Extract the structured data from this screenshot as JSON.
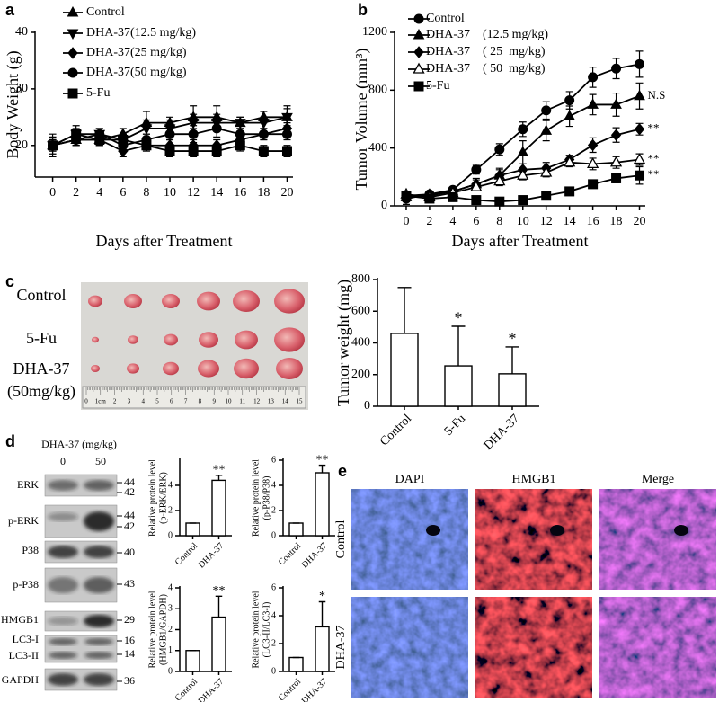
{
  "panel_labels": [
    "a",
    "b",
    "c",
    "d",
    "e"
  ],
  "chart_data": [
    {
      "type": "line",
      "ylabel": "Body Weight (g)",
      "xlabel": "Days after Treatment",
      "x": [
        0,
        2,
        4,
        6,
        8,
        10,
        12,
        14,
        16,
        18,
        20
      ],
      "xlim": [
        -1.5,
        20.5
      ],
      "xticks": [
        0,
        2,
        4,
        6,
        8,
        10,
        12,
        14,
        16,
        18,
        20
      ],
      "ylim": [
        14.4,
        40
      ],
      "yticks": [
        20,
        30,
        40
      ],
      "series": [
        {
          "name": "Control",
          "color": "#000000",
          "marker": "triangle",
          "values": [
            20,
            21,
            21,
            22,
            24,
            24,
            25,
            25,
            24,
            25,
            25
          ],
          "errors": [
            2,
            1,
            1,
            1,
            2,
            1,
            2,
            2,
            1,
            1,
            2
          ]
        },
        {
          "name": "DHA-37(12.5 mg/kg)",
          "color": "#000000",
          "marker": "triangle-down",
          "values": [
            20,
            22,
            22,
            21,
            23,
            23,
            24,
            24,
            24,
            24,
            25
          ],
          "errors": [
            1.5,
            1.5,
            1,
            1,
            1.5,
            1.5,
            1.5,
            1.5,
            1,
            1,
            1.5
          ]
        },
        {
          "name": "DHA-37(25 mg/kg)",
          "color": "#000000",
          "marker": "diamond",
          "values": [
            20,
            21,
            21,
            19,
            20,
            20,
            20,
            20,
            21,
            22,
            23
          ],
          "errors": [
            1,
            1,
            1,
            1,
            1,
            1,
            1,
            1,
            1,
            1,
            1
          ]
        },
        {
          "name": "DHA-37(50 mg/kg)",
          "color": "#000000",
          "marker": "circle",
          "values": [
            20,
            21,
            22,
            20,
            21,
            22,
            22,
            23,
            22,
            22,
            22
          ],
          "errors": [
            1,
            1,
            1,
            1,
            1,
            1,
            1.5,
            1.5,
            1,
            1,
            1
          ]
        },
        {
          "name": "5-Fu",
          "color": "#000000",
          "marker": "square",
          "values": [
            20,
            22,
            21,
            21,
            20,
            19,
            19,
            19,
            20,
            19,
            19
          ],
          "errors": [
            1,
            1,
            1,
            1,
            1,
            1,
            1,
            1,
            1,
            1,
            1
          ]
        }
      ]
    },
    {
      "type": "line",
      "ylabel": "Tumor Volume (mm³)",
      "xlabel": "Days after Treatment",
      "x": [
        0,
        2,
        4,
        6,
        8,
        10,
        12,
        14,
        16,
        18,
        20
      ],
      "xlim": [
        -1,
        20.5
      ],
      "xticks": [
        0,
        2,
        4,
        6,
        8,
        10,
        12,
        14,
        16,
        18,
        20
      ],
      "ylim": [
        0,
        1200
      ],
      "yticks": [
        0,
        400,
        800,
        1200
      ],
      "series": [
        {
          "name": "Control",
          "color": "#000000",
          "marker": "circle",
          "values": [
            50,
            80,
            110,
            250,
            390,
            530,
            660,
            730,
            890,
            950,
            980
          ],
          "errors": [
            40,
            20,
            20,
            30,
            40,
            50,
            60,
            60,
            70,
            70,
            90
          ]
        },
        {
          "name": "DHA-37    (12.5 mg/kg)",
          "color": "#000000",
          "marker": "triangle",
          "values": [
            60,
            70,
            100,
            150,
            210,
            370,
            520,
            620,
            700,
            700,
            760
          ],
          "errors": [
            30,
            20,
            20,
            40,
            50,
            80,
            70,
            70,
            70,
            80,
            90
          ]
        },
        {
          "name": "DHA-37    ( 25  mg/kg)",
          "color": "#000000",
          "marker": "diamond",
          "values": [
            70,
            80,
            100,
            150,
            210,
            250,
            260,
            320,
            420,
            490,
            530
          ],
          "errors": [
            20,
            20,
            20,
            30,
            40,
            40,
            40,
            30,
            50,
            50,
            40
          ]
        },
        {
          "name": "DHA-37    ( 50  mg/kg)",
          "color": "#000000",
          "marker": "triangle-open",
          "values": [
            80,
            60,
            90,
            130,
            170,
            210,
            230,
            300,
            290,
            300,
            320
          ],
          "errors": [
            20,
            20,
            20,
            20,
            30,
            30,
            30,
            30,
            40,
            40,
            40
          ]
        },
        {
          "name": "5-Fu",
          "color": "#000000",
          "marker": "square",
          "values": [
            70,
            50,
            60,
            40,
            30,
            40,
            70,
            100,
            150,
            190,
            210
          ],
          "errors": [
            20,
            20,
            20,
            10,
            10,
            10,
            10,
            10,
            20,
            30,
            60
          ]
        }
      ],
      "annotations": [
        {
          "series": 1,
          "text": "N.S"
        },
        {
          "series": 2,
          "text": "**"
        },
        {
          "series": 3,
          "text": "**"
        },
        {
          "series": 4,
          "text": "**"
        }
      ]
    },
    {
      "type": "bar",
      "ylabel": [
        "Tumor weight (mg)"
      ],
      "categories": [
        "Control",
        "5-Fu",
        "DHA-37"
      ],
      "values": [
        460,
        255,
        205
      ],
      "errors": [
        290,
        250,
        170
      ],
      "color": "#ffffff",
      "ylim": [
        0,
        800
      ],
      "yticks": [
        0,
        200,
        400,
        600,
        800
      ],
      "annotations": [
        {
          "category": 1,
          "text": "*"
        },
        {
          "category": 2,
          "text": "*"
        }
      ]
    },
    {
      "type": "bar",
      "ylabel": [
        "Relative protein level",
        "(p-ERK/ERK)"
      ],
      "categories": [
        "Control",
        "DHA-37"
      ],
      "values": [
        1,
        4.4
      ],
      "errors": [
        0,
        0.4
      ],
      "color": "#ffffff",
      "ylim": [
        0,
        6
      ],
      "yticks": [
        0,
        2,
        4
      ],
      "annotations": [
        {
          "category": 1,
          "text": "**"
        }
      ]
    },
    {
      "type": "bar",
      "ylabel": [
        "Relative protein level",
        "(p-P38/P38)"
      ],
      "categories": [
        "Control",
        "DHA-37"
      ],
      "values": [
        1,
        5.0
      ],
      "errors": [
        0,
        0.6
      ],
      "color": "#ffffff",
      "ylim": [
        0,
        6
      ],
      "yticks": [
        0,
        2,
        4,
        6
      ],
      "annotations": [
        {
          "category": 1,
          "text": "**"
        }
      ]
    },
    {
      "type": "bar",
      "ylabel": [
        "Relative protein level",
        "(HMGB1/GAPDH)"
      ],
      "categories": [
        "Control",
        "DHA-37"
      ],
      "values": [
        1,
        2.6
      ],
      "errors": [
        0,
        1.0
      ],
      "color": "#ffffff",
      "ylim": [
        0,
        4
      ],
      "yticks": [
        0,
        1,
        2,
        3,
        4
      ],
      "annotations": [
        {
          "category": 1,
          "text": "**"
        }
      ]
    },
    {
      "type": "bar",
      "ylabel": [
        "Relative protein level",
        "(LC3-II/LC3-I)"
      ],
      "categories": [
        "Control",
        "DHA-37"
      ],
      "values": [
        1,
        3.2
      ],
      "errors": [
        0,
        1.8
      ],
      "color": "#ffffff",
      "ylim": [
        0,
        6
      ],
      "yticks": [
        0,
        2,
        4,
        6
      ],
      "annotations": [
        {
          "category": 1,
          "text": "*"
        }
      ]
    }
  ],
  "tumor_photo": {
    "row_labels": [
      "Control",
      "5-Fu",
      "DHA-37",
      "(50mg/kg)"
    ],
    "ruler_labels": [
      "0",
      "1cm",
      "2",
      "3",
      "4",
      "5",
      "6",
      "7",
      "8",
      "9",
      "10",
      "11",
      "12",
      "13",
      "14",
      "15"
    ]
  },
  "western_blot": {
    "treatment_label": "DHA-37 (mg/kg)",
    "doses": [
      "0",
      "50"
    ],
    "proteins": [
      "ERK",
      "p-ERK",
      "P38",
      "p-P38",
      "HMGB1",
      "LC3-I",
      "LC3-II",
      "GAPDH"
    ],
    "kda": [
      "44",
      "42",
      "44",
      "42",
      "40",
      "43",
      "29",
      "16",
      "14",
      "36"
    ]
  },
  "fluorescence": {
    "columns": [
      "DAPI",
      "HMGB1",
      "Merge"
    ],
    "rows": [
      "Control",
      "DHA-37"
    ]
  }
}
